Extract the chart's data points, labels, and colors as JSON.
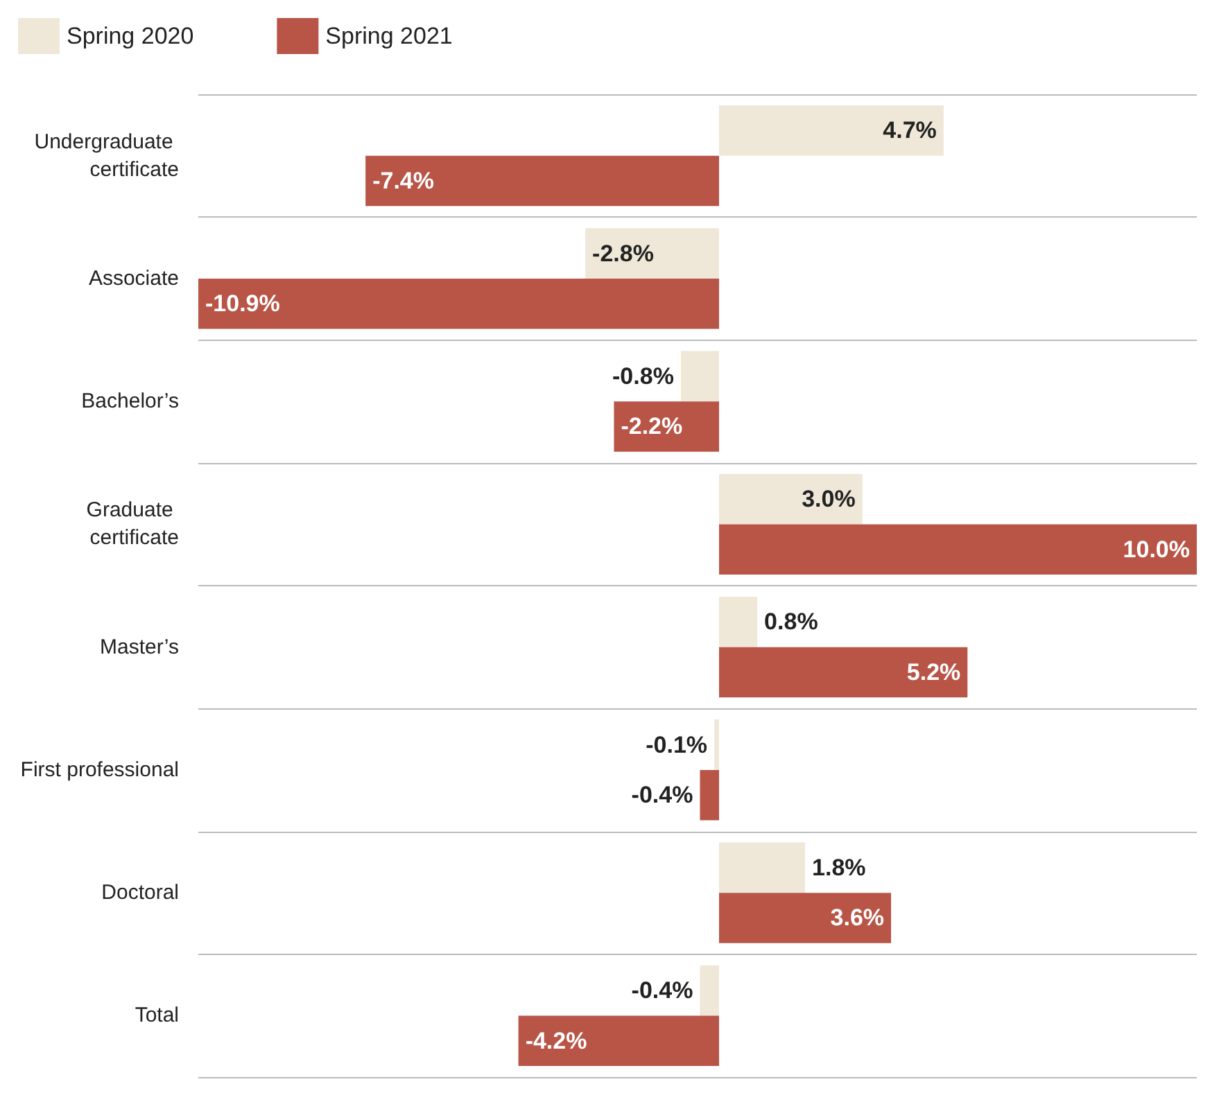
{
  "chart_data": {
    "type": "bar",
    "orientation": "horizontal",
    "categories": [
      "Undergraduate certificate",
      "Associate",
      "Bachelor’s",
      "Graduate certificate",
      "Master’s",
      "First professional",
      "Doctoral",
      "Total"
    ],
    "series": [
      {
        "name": "Spring 2020",
        "color": "#efe8d8",
        "values": [
          4.7,
          -2.8,
          -0.8,
          3.0,
          0.8,
          -0.1,
          1.8,
          -0.4
        ],
        "value_labels": [
          "4.7%",
          "-2.8%",
          "-0.8%",
          "3.0%",
          "0.8%",
          "-0.1%",
          "1.8%",
          "-0.4%"
        ]
      },
      {
        "name": "Spring 2021",
        "color": "#b85547",
        "values": [
          -7.4,
          -10.9,
          -2.2,
          10.0,
          5.2,
          -0.4,
          3.6,
          -4.2
        ],
        "value_labels": [
          "-7.4%",
          "-10.9%",
          "-2.2%",
          "10.0%",
          "5.2%",
          "-0.4%",
          "3.6%",
          "-4.2%"
        ]
      }
    ],
    "relative": false,
    "grid": "y",
    "legend": "top left"
  }
}
